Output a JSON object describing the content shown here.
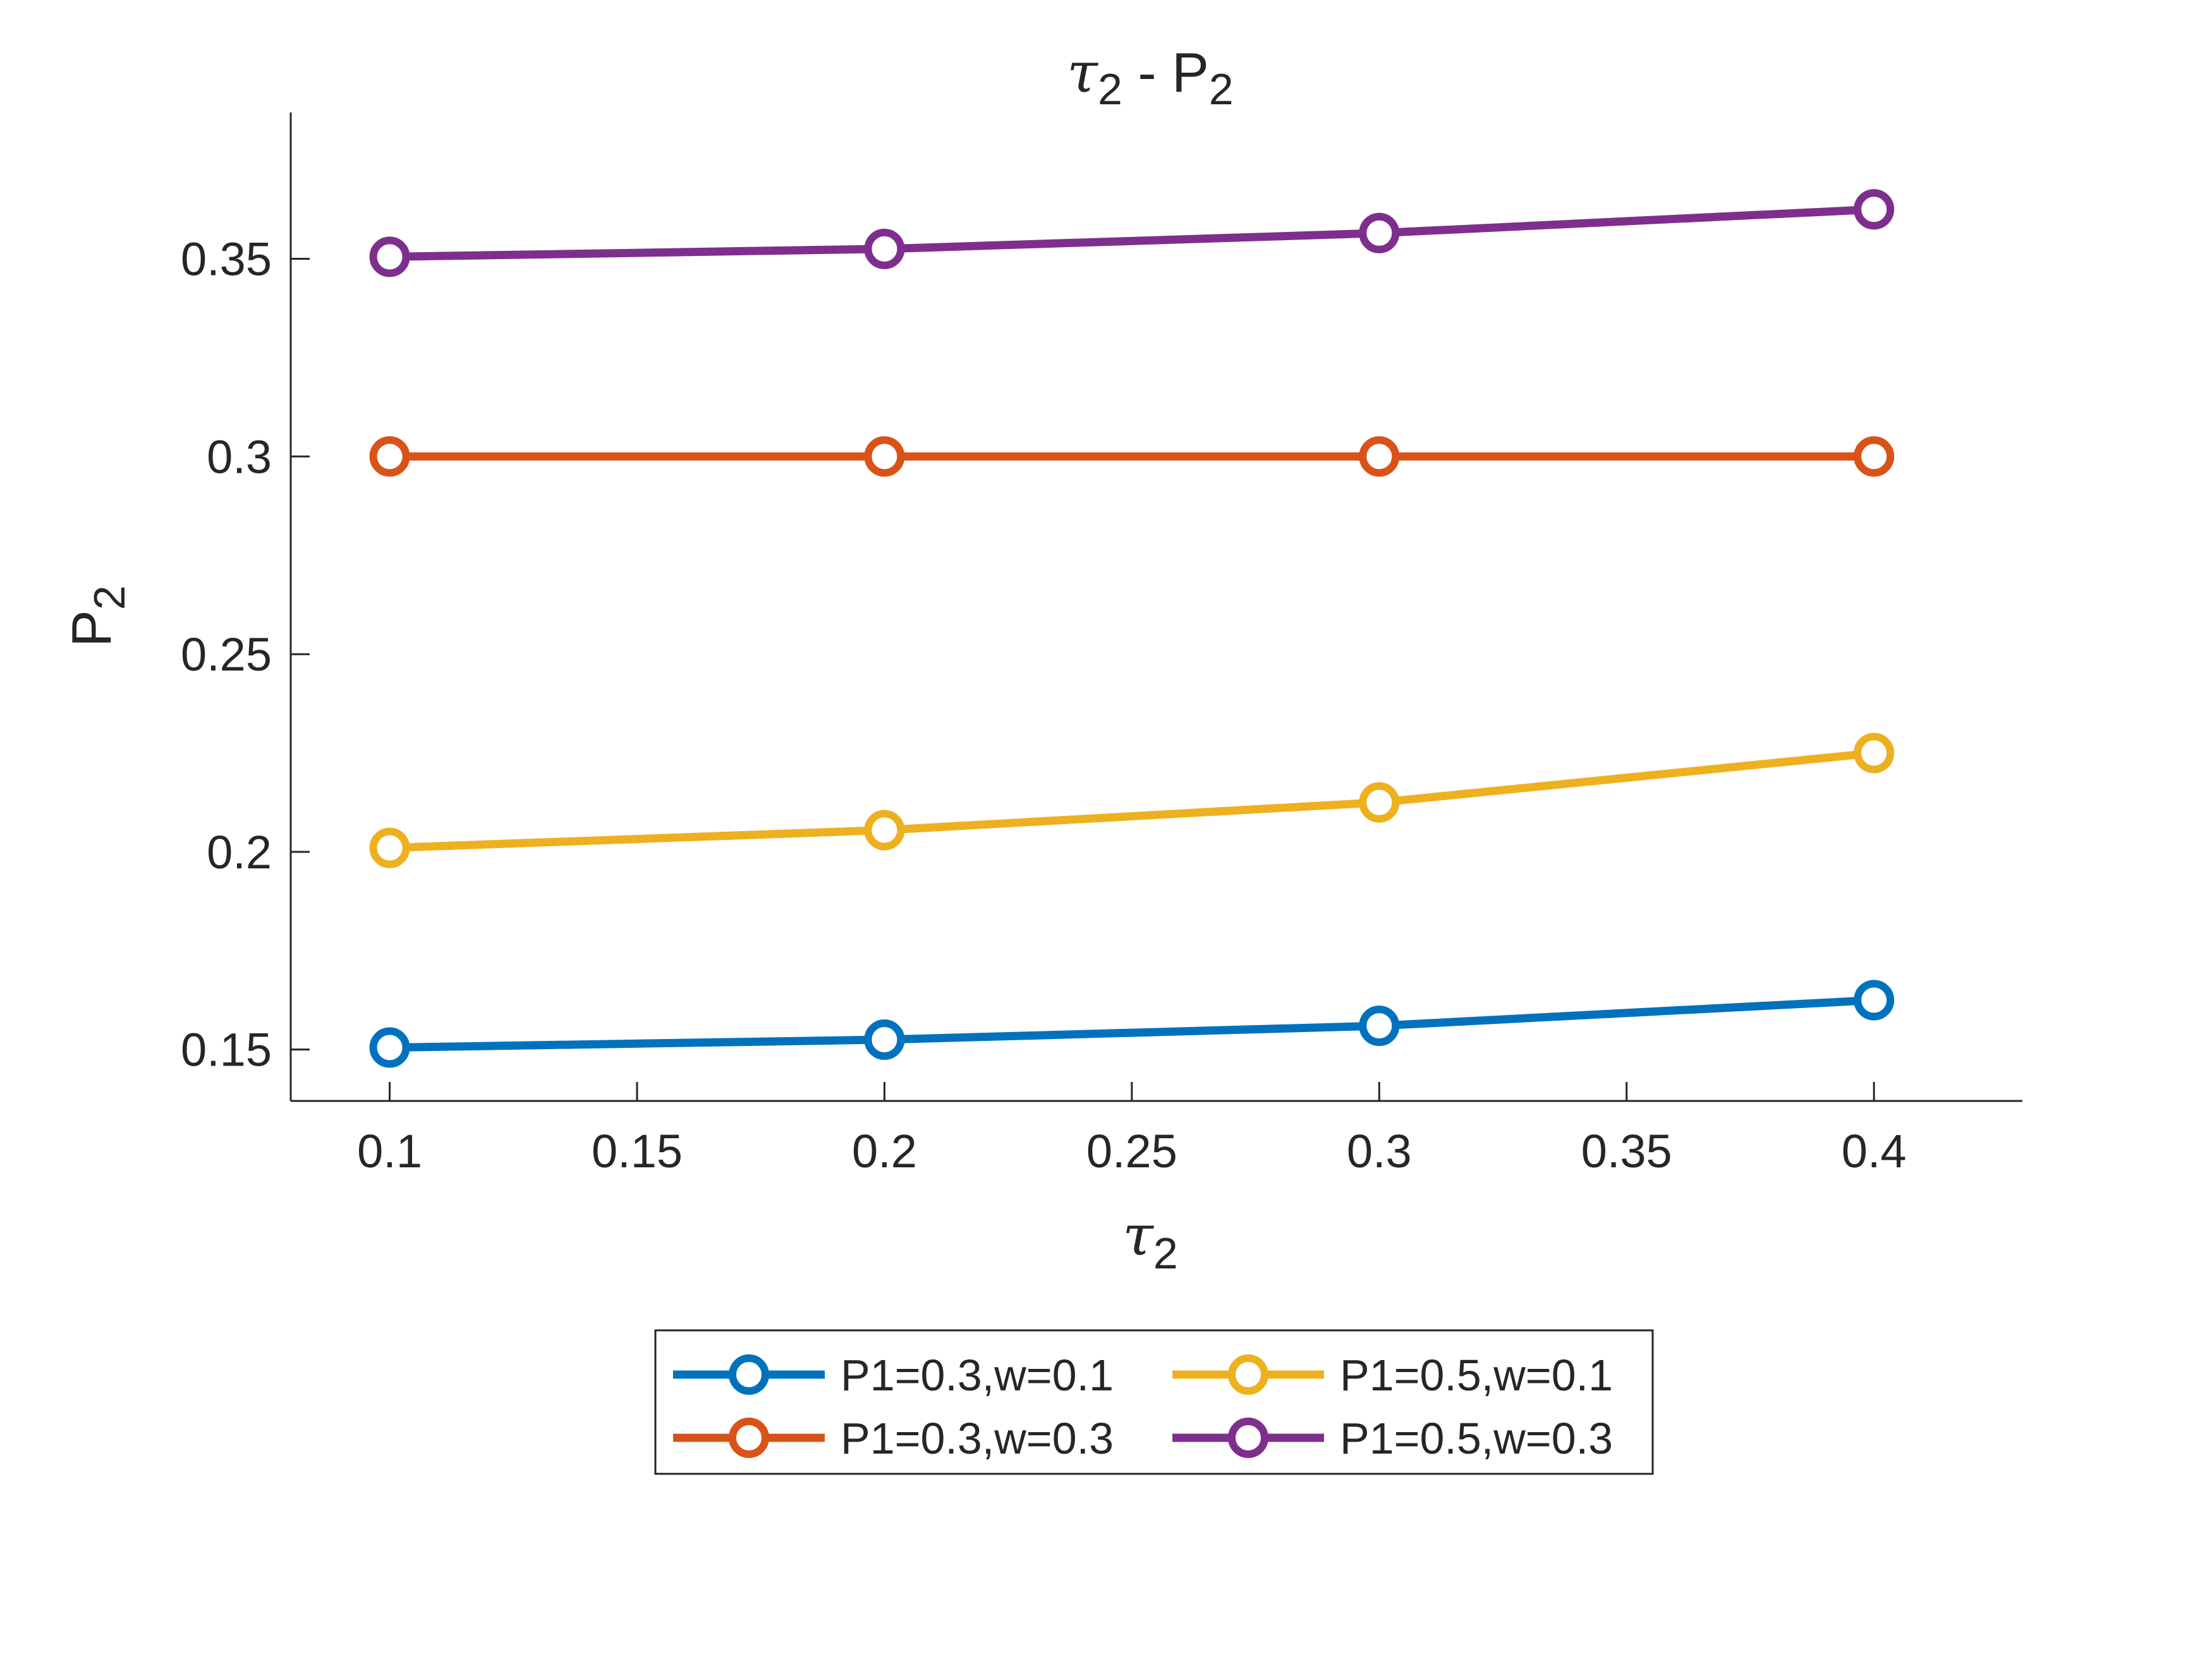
{
  "chart_data": {
    "type": "line",
    "title": {
      "main": "τ",
      "sub": "2",
      "rest": " - P",
      "sub2": "2"
    },
    "xlabel": {
      "main": "τ",
      "sub": "2"
    },
    "ylabel": {
      "main": "P",
      "sub": "2"
    },
    "xlim": [
      0.08,
      0.43
    ],
    "ylim": [
      0.137,
      0.387
    ],
    "xticks": [
      0.1,
      0.15,
      0.2,
      0.25,
      0.3,
      0.35,
      0.4
    ],
    "xtick_labels": [
      "0.1",
      "0.15",
      "0.2",
      "0.25",
      "0.3",
      "0.35",
      "0.4"
    ],
    "yticks": [
      0.15,
      0.2,
      0.25,
      0.3,
      0.35
    ],
    "ytick_labels": [
      "0.15",
      "0.2",
      "0.25",
      "0.3",
      "0.35"
    ],
    "grid": false,
    "legend_position": "bottom-outside",
    "x": [
      0.1,
      0.2,
      0.3,
      0.4
    ],
    "series": [
      {
        "name": "P1=0.3,w=0.1",
        "color": "#0072BD",
        "values": [
          0.1505,
          0.1525,
          0.156,
          0.1625
        ]
      },
      {
        "name": "P1=0.3,w=0.3",
        "color": "#D95319",
        "values": [
          0.3,
          0.3,
          0.3,
          0.3
        ]
      },
      {
        "name": "P1=0.5,w=0.1",
        "color": "#EDB120",
        "values": [
          0.201,
          0.2055,
          0.2125,
          0.225
        ]
      },
      {
        "name": "P1=0.5,w=0.3",
        "color": "#7E2F8E",
        "values": [
          0.3505,
          0.3525,
          0.3565,
          0.3625
        ]
      }
    ]
  }
}
